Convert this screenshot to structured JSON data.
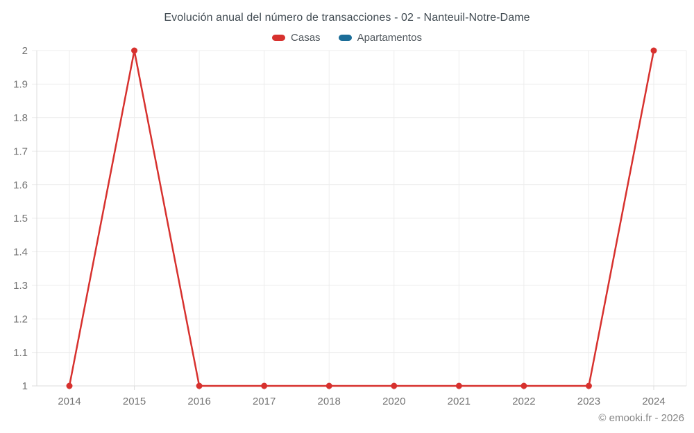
{
  "chart_data": {
    "type": "line",
    "title": "Evolución anual del número de transacciones - 02 - Nanteuil-Notre-Dame",
    "categories": [
      "2014",
      "2015",
      "2016",
      "2017",
      "2018",
      "2020",
      "2021",
      "2022",
      "2023",
      "2024"
    ],
    "series": [
      {
        "name": "Casas",
        "color": "#d7312e",
        "values": [
          1,
          2,
          1,
          1,
          1,
          1,
          1,
          1,
          1,
          2
        ]
      },
      {
        "name": "Apartamentos",
        "color": "#1b6d98",
        "values": []
      }
    ],
    "ylim": [
      1,
      2
    ],
    "yticks": [
      {
        "label": "1",
        "value": 1.0
      },
      {
        "label": "1.1",
        "value": 1.1
      },
      {
        "label": "1.2",
        "value": 1.2
      },
      {
        "label": "1.3",
        "value": 1.3
      },
      {
        "label": "1.4",
        "value": 1.4
      },
      {
        "label": "1.5",
        "value": 1.5
      },
      {
        "label": "1.6",
        "value": 1.6
      },
      {
        "label": "1.7",
        "value": 1.7
      },
      {
        "label": "1.8",
        "value": 1.8
      },
      {
        "label": "1.9",
        "value": 1.9
      },
      {
        "label": "2",
        "value": 2.0
      }
    ],
    "grid": true,
    "legend_position": "top",
    "watermark": "© emooki.fr - 2026",
    "colors": {
      "grid": "#ececec",
      "axis": "#dcdcdc",
      "tick_label": "#737373",
      "title": "#414b52",
      "legend_text": "#50575d",
      "watermark": "#848484"
    }
  }
}
